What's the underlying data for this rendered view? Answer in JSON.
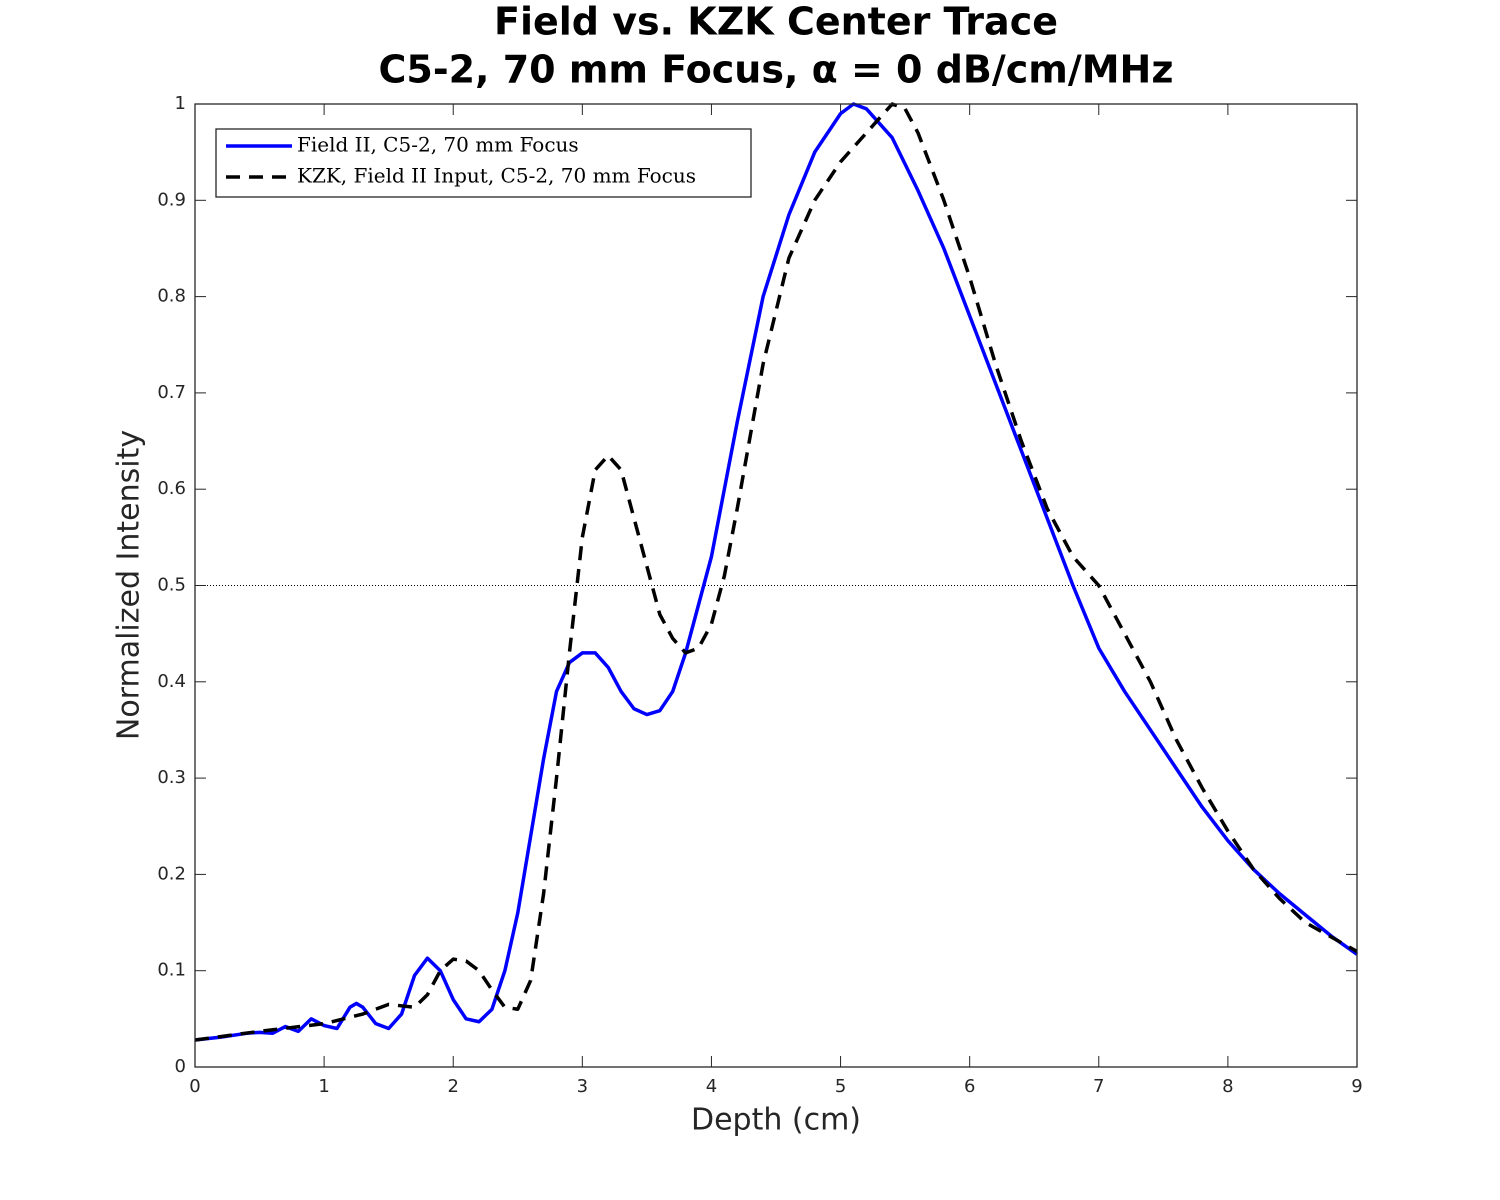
{
  "chart_data": {
    "type": "line",
    "title": [
      "Field vs. KZK Center Trace",
      "C5-2, 70 mm Focus, α = 0 dB/cm/MHz"
    ],
    "x_label": "Depth (cm)",
    "y_label": "Normalized Intensity",
    "xlim": [
      0,
      9
    ],
    "ylim": [
      0,
      1
    ],
    "xticks": [
      0,
      1,
      2,
      3,
      4,
      5,
      6,
      7,
      8,
      9
    ],
    "yticks": [
      0,
      0.1,
      0.2,
      0.3,
      0.4,
      0.5,
      0.6,
      0.7,
      0.8,
      0.9,
      1
    ],
    "grid": false,
    "legend_position": "upper-left",
    "reference_line": 0.5,
    "series": [
      {
        "name": "Field II, C5-2, 70 mm Focus",
        "color": "#0000ff",
        "dash": "solid",
        "x": [
          0,
          0.2,
          0.4,
          0.5,
          0.6,
          0.7,
          0.8,
          0.9,
          1.0,
          1.1,
          1.2,
          1.25,
          1.3,
          1.4,
          1.5,
          1.6,
          1.7,
          1.8,
          1.9,
          2.0,
          2.1,
          2.2,
          2.3,
          2.4,
          2.5,
          2.6,
          2.7,
          2.8,
          2.9,
          3.0,
          3.1,
          3.2,
          3.3,
          3.4,
          3.5,
          3.6,
          3.7,
          3.8,
          3.9,
          4.0,
          4.2,
          4.4,
          4.6,
          4.8,
          5.0,
          5.1,
          5.2,
          5.4,
          5.6,
          5.8,
          6.0,
          6.2,
          6.4,
          6.6,
          6.8,
          7.0,
          7.2,
          7.4,
          7.6,
          7.8,
          8.0,
          8.2,
          8.4,
          8.6,
          8.8,
          9.0
        ],
        "values": [
          0.028,
          0.031,
          0.035,
          0.036,
          0.035,
          0.042,
          0.037,
          0.05,
          0.043,
          0.04,
          0.062,
          0.066,
          0.062,
          0.045,
          0.04,
          0.055,
          0.095,
          0.113,
          0.1,
          0.07,
          0.05,
          0.047,
          0.06,
          0.1,
          0.16,
          0.24,
          0.32,
          0.39,
          0.42,
          0.43,
          0.43,
          0.415,
          0.39,
          0.372,
          0.366,
          0.37,
          0.39,
          0.43,
          0.48,
          0.53,
          0.67,
          0.8,
          0.885,
          0.95,
          0.99,
          1.0,
          0.995,
          0.965,
          0.91,
          0.85,
          0.78,
          0.71,
          0.64,
          0.57,
          0.5,
          0.435,
          0.39,
          0.35,
          0.31,
          0.27,
          0.235,
          0.205,
          0.18,
          0.158,
          0.136,
          0.117
        ]
      },
      {
        "name": "KZK, Field II Input, C5-2, 70 mm Focus",
        "color": "#000000",
        "dash": "dashed",
        "x": [
          0,
          0.5,
          1.0,
          1.3,
          1.5,
          1.7,
          1.8,
          1.9,
          2.0,
          2.1,
          2.2,
          2.3,
          2.4,
          2.5,
          2.6,
          2.7,
          2.8,
          2.9,
          3.0,
          3.1,
          3.2,
          3.3,
          3.4,
          3.5,
          3.6,
          3.7,
          3.8,
          3.9,
          4.0,
          4.1,
          4.2,
          4.4,
          4.6,
          4.8,
          5.0,
          5.2,
          5.4,
          5.5,
          5.6,
          5.8,
          6.0,
          6.2,
          6.4,
          6.6,
          6.8,
          7.0,
          7.2,
          7.4,
          7.6,
          7.8,
          8.0,
          8.2,
          8.4,
          8.6,
          8.8,
          9.0
        ],
        "values": [
          0.028,
          0.037,
          0.045,
          0.055,
          0.065,
          0.062,
          0.075,
          0.1,
          0.112,
          0.11,
          0.1,
          0.08,
          0.062,
          0.06,
          0.09,
          0.18,
          0.3,
          0.43,
          0.55,
          0.62,
          0.635,
          0.62,
          0.57,
          0.52,
          0.47,
          0.445,
          0.43,
          0.435,
          0.46,
          0.51,
          0.58,
          0.73,
          0.84,
          0.9,
          0.94,
          0.97,
          1.0,
          0.995,
          0.97,
          0.9,
          0.82,
          0.73,
          0.65,
          0.58,
          0.53,
          0.5,
          0.45,
          0.4,
          0.34,
          0.29,
          0.245,
          0.205,
          0.175,
          0.15,
          0.135,
          0.12
        ]
      }
    ]
  }
}
